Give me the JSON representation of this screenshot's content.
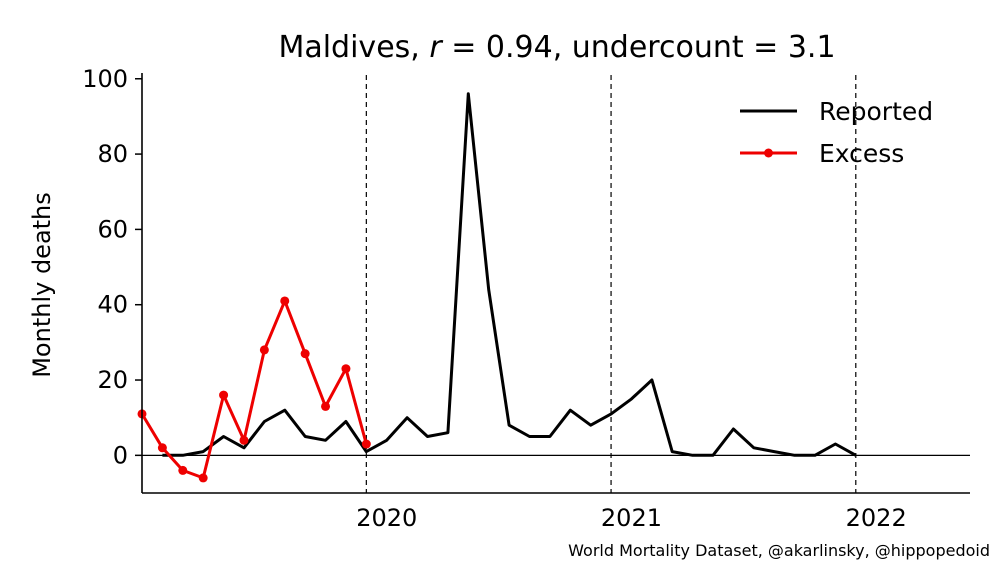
{
  "chart_data": {
    "type": "line",
    "title": "Maldives, r = 0.94, undercount = 3.1",
    "title_parts": {
      "country": "Maldives, ",
      "r_symbol": "r",
      "r_value": " = 0.94, undercount = 3.1"
    },
    "xlabel": "",
    "ylabel": "Monthly deaths",
    "credit": "World Mortality Dataset, @akarlinsky, @hippopedoid",
    "x_ticks": [
      "2020",
      "2021",
      "2022"
    ],
    "y_ticks": [
      "0",
      "20",
      "40",
      "60",
      "80",
      "100"
    ],
    "ylim": [
      -10,
      101
    ],
    "legend_position": "top-right",
    "grid": false,
    "zero_line": true,
    "year_dividers": [
      "2020-06",
      "2021-06",
      "2022-06"
    ],
    "colors": {
      "reported": "#000000",
      "excess": "#ee0000"
    },
    "series": [
      {
        "name": "Reported",
        "color": "#000000",
        "marker": false,
        "x": [
          "2019-08",
          "2019-09",
          "2019-10",
          "2019-11",
          "2019-12",
          "2020-01",
          "2020-02",
          "2020-03",
          "2020-04",
          "2020-05",
          "2020-06",
          "2020-07",
          "2020-08",
          "2020-09",
          "2020-10",
          "2020-11",
          "2020-12",
          "2021-01",
          "2021-02",
          "2021-03",
          "2021-04",
          "2021-05",
          "2021-06",
          "2021-07",
          "2021-08",
          "2021-09",
          "2021-10",
          "2021-11",
          "2021-12",
          "2022-01",
          "2022-02",
          "2022-03",
          "2022-04",
          "2022-05",
          "2022-06"
        ],
        "values": [
          0,
          0,
          1,
          5,
          2,
          9,
          12,
          5,
          4,
          9,
          1,
          4,
          10,
          5,
          6,
          96,
          44,
          8,
          5,
          5,
          12,
          8,
          11,
          15,
          20,
          1,
          0,
          0,
          7,
          2,
          1,
          0,
          0,
          3,
          0
        ]
      },
      {
        "name": "Excess",
        "color": "#ee0000",
        "marker": true,
        "x": [
          "2019-07",
          "2019-08",
          "2019-09",
          "2019-10",
          "2019-11",
          "2019-12",
          "2020-01",
          "2020-02",
          "2020-03",
          "2020-04",
          "2020-05",
          "2020-06"
        ],
        "values": [
          11,
          2,
          -4,
          -6,
          16,
          4,
          28,
          41,
          27,
          13,
          23,
          3
        ]
      }
    ]
  }
}
